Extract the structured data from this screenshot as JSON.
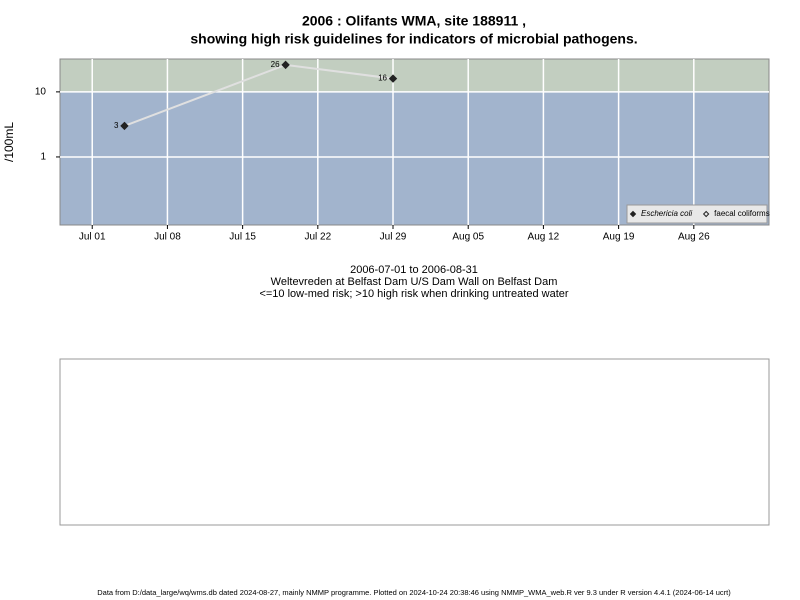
{
  "chart_data": {
    "type": "line",
    "title": "2006 : Olifants WMA, site 188911 ,",
    "subtitle": "showing high risk guidelines for indicators of microbial pathogens.",
    "ylabel": "/100mL",
    "caption": [
      "2006-07-01 to 2006-08-31",
      "Weltevreden at Belfast Dam U/S Dam Wall on Belfast Dam",
      "<=10 low-med risk; >10 high risk when drinking untreated water"
    ],
    "x": [
      "2006-07-04",
      "2006-07-19",
      "2006-07-29"
    ],
    "series": [
      {
        "name": "Eschericia coli",
        "color": "#222222",
        "line_color": "#e0e0e0",
        "marker": "filled",
        "values": [
          3,
          26,
          16
        ]
      },
      {
        "name": "faecal coliforms",
        "color": "#222222",
        "line_color": "#e0e0e0",
        "marker": "open",
        "values": [
          null,
          null,
          null
        ]
      }
    ],
    "log_y": true,
    "ylim": [
      0.09,
      32
    ],
    "yticks": [
      1,
      10
    ],
    "threshold": 10,
    "high_color": "#c2cec0",
    "low_color": "#a2b4cd",
    "xlim": [
      "2006-06-28",
      "2006-09-02"
    ],
    "xticks": [
      {
        "value": "2006-07-01",
        "label": "Jul 01"
      },
      {
        "value": "2006-07-08",
        "label": "Jul 08"
      },
      {
        "value": "2006-07-15",
        "label": "Jul 15"
      },
      {
        "value": "2006-07-22",
        "label": "Jul 22"
      },
      {
        "value": "2006-07-29",
        "label": "Jul 29"
      },
      {
        "value": "2006-08-05",
        "label": "Aug 05"
      },
      {
        "value": "2006-08-12",
        "label": "Aug 12"
      },
      {
        "value": "2006-08-19",
        "label": "Aug 19"
      },
      {
        "value": "2006-08-26",
        "label": "Aug 26"
      }
    ],
    "grid": true,
    "legend": "lower right"
  },
  "footer": "Data from D:/data_large/wq/wms.db dated 2024-08-27, mainly NMMP programme. Plotted on 2024-10-24 20:38:46 using NMMP_WMA_web.R ver 9.3 under R version 4.4.1 (2024-06-14 ucrt)"
}
